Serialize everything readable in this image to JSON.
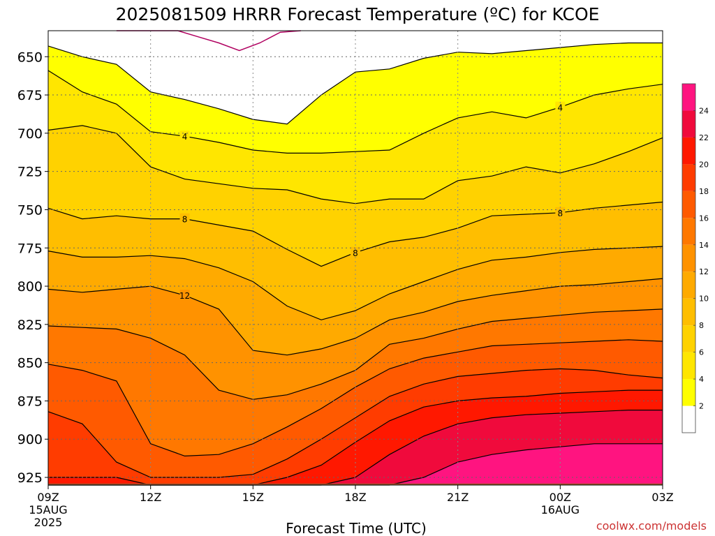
{
  "chart_data": {
    "type": "heatmap",
    "title": "2025081509 HRRR Forecast Temperature (ºC) for KCOE",
    "xlabel": "Forecast Time (UTC)",
    "credit": "coolwx.com/models",
    "x_axis": {
      "ticks": [
        {
          "hour": 0,
          "label": "09Z",
          "sub1": "15AUG",
          "sub2": "2025"
        },
        {
          "hour": 3,
          "label": "12Z"
        },
        {
          "hour": 6,
          "label": "15Z"
        },
        {
          "hour": 9,
          "label": "18Z"
        },
        {
          "hour": 12,
          "label": "21Z"
        },
        {
          "hour": 15,
          "label": "00Z",
          "sub1": "16AUG"
        },
        {
          "hour": 18,
          "label": "03Z"
        }
      ],
      "range_hours": [
        0,
        18
      ]
    },
    "y_axis": {
      "unit": "hPa",
      "range": [
        930,
        633
      ],
      "ticks": [
        650,
        675,
        700,
        725,
        750,
        775,
        800,
        825,
        850,
        875,
        900,
        925
      ]
    },
    "hours": [
      0,
      1,
      2,
      3,
      4,
      5,
      6,
      7,
      8,
      9,
      10,
      11,
      12,
      13,
      14,
      15,
      16,
      17,
      18
    ],
    "surface_pressure": [
      929,
      929,
      929,
      929,
      929,
      929,
      929,
      929,
      929,
      929,
      929,
      929,
      929,
      929,
      929,
      929,
      929,
      929,
      929
    ],
    "contour_levels": [
      2,
      4,
      6,
      8,
      10,
      12,
      14,
      16,
      18,
      20,
      22,
      24
    ],
    "labeled_contours": [
      4,
      8,
      12
    ],
    "isotherms": [
      {
        "level": 2,
        "p": [
          643,
          650,
          655,
          673,
          678,
          684,
          691,
          694,
          675,
          660,
          658,
          651,
          647,
          648,
          646,
          644,
          642,
          641,
          641
        ]
      },
      {
        "level": 4,
        "p": [
          659,
          673,
          681,
          699,
          702,
          706,
          711,
          713,
          713,
          712,
          711,
          700,
          690,
          686,
          690,
          683,
          675,
          671,
          668
        ]
      },
      {
        "level": 6,
        "p": [
          698,
          695,
          700,
          722,
          730,
          733,
          736,
          737,
          743,
          746,
          743,
          743,
          731,
          728,
          722,
          726,
          720,
          712,
          703
        ]
      },
      {
        "level": 8,
        "p": [
          749,
          756,
          754,
          756,
          756,
          760,
          764,
          776,
          787,
          778,
          771,
          768,
          762,
          754,
          753,
          752,
          749,
          747,
          745
        ]
      },
      {
        "level": 10,
        "p": [
          777,
          781,
          781,
          780,
          782,
          788,
          797,
          813,
          822,
          816,
          805,
          797,
          789,
          783,
          781,
          778,
          776,
          775,
          774
        ]
      },
      {
        "level": 12,
        "p": [
          802,
          804,
          802,
          800,
          806,
          815,
          842,
          845,
          841,
          834,
          822,
          817,
          810,
          806,
          803,
          800,
          799,
          797,
          795
        ]
      },
      {
        "level": 14,
        "p": [
          826,
          827,
          828,
          834,
          845,
          868,
          874,
          871,
          864,
          855,
          838,
          834,
          828,
          823,
          821,
          819,
          817,
          816,
          815
        ]
      },
      {
        "level": 16,
        "p": [
          851,
          855,
          862,
          903,
          911,
          910,
          903,
          892,
          880,
          866,
          854,
          847,
          843,
          839,
          838,
          837,
          836,
          835,
          836
        ]
      },
      {
        "level": 18,
        "p": [
          882,
          890,
          915,
          925,
          925,
          925,
          923,
          913,
          900,
          886,
          872,
          864,
          859,
          857,
          855,
          854,
          855,
          858,
          860
        ]
      },
      {
        "level": 20,
        "p": [
          925,
          925,
          925,
          930,
          930,
          930,
          930,
          925,
          917,
          902,
          888,
          879,
          875,
          873,
          872,
          870,
          869,
          868,
          868
        ]
      },
      {
        "level": 22,
        "p": [
          930,
          930,
          930,
          930,
          930,
          930,
          930,
          930,
          930,
          925,
          910,
          898,
          890,
          886,
          884,
          883,
          882,
          881,
          881
        ]
      },
      {
        "level": 24,
        "p": [
          930,
          930,
          930,
          930,
          930,
          930,
          930,
          930,
          930,
          930,
          930,
          925,
          915,
          910,
          907,
          905,
          903,
          903,
          903
        ]
      }
    ],
    "colorbar": {
      "levels": [
        2,
        4,
        6,
        8,
        10,
        12,
        14,
        16,
        18,
        20,
        22,
        24
      ],
      "colors": [
        "#ffffff",
        "#ffff00",
        "#ffe600",
        "#ffd200",
        "#ffbe00",
        "#ffaa00",
        "#ff9200",
        "#ff7800",
        "#ff5a00",
        "#ff3c00",
        "#ff1800",
        "#f00a3c",
        "#ff1480"
      ]
    },
    "fill_colors": [
      "#ffffff",
      "#ffff00",
      "#ffe600",
      "#ffd200",
      "#ffbe00",
      "#ffaa00",
      "#ff9200",
      "#ff7800",
      "#ff5a00",
      "#ff3c00",
      "#ff1800",
      "#f00a3c",
      "#ff1480"
    ],
    "ground_color": "#a0522d",
    "upper_contour_color": "#b00060",
    "grid": true
  }
}
